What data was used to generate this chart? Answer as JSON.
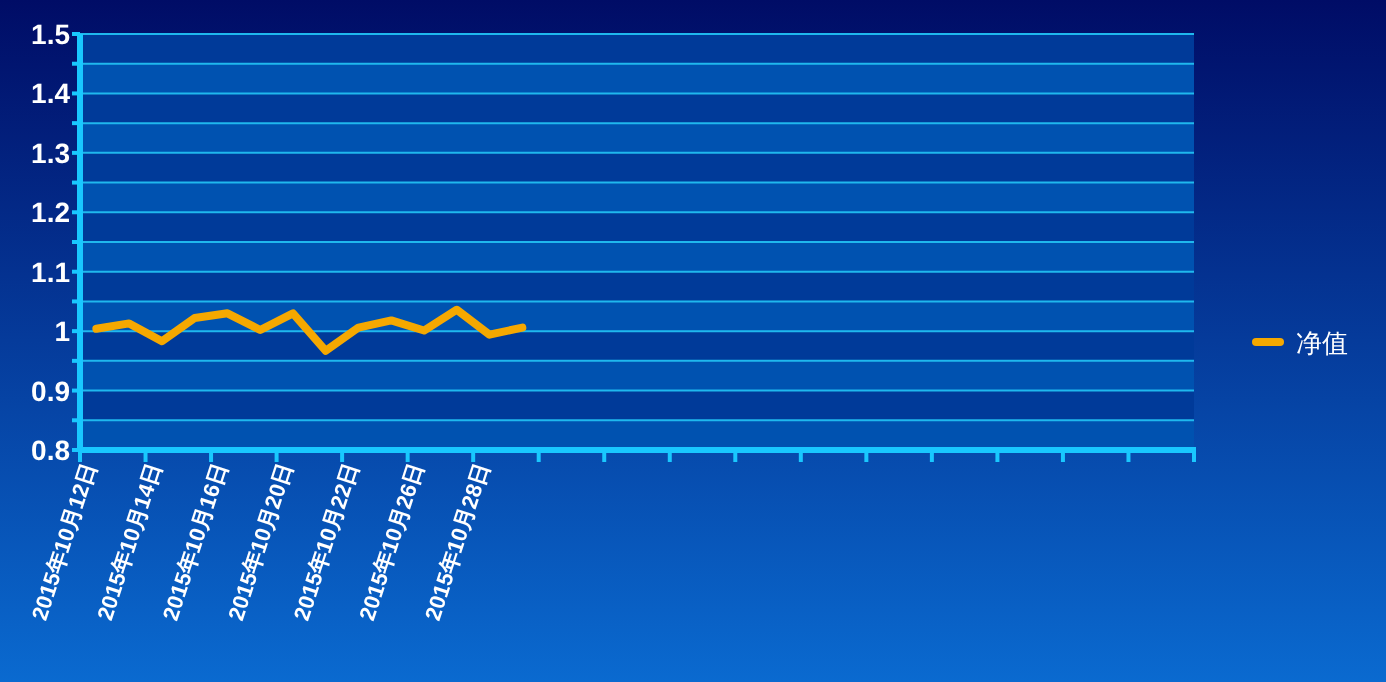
{
  "chart_data": {
    "type": "line",
    "categories": [
      "2015年10月12日",
      null,
      "2015年10月14日",
      null,
      "2015年10月16日",
      null,
      "2015年10月20日",
      null,
      "2015年10月22日",
      null,
      "2015年10月26日",
      null,
      "2015年10月28日",
      null,
      null,
      null,
      null,
      null,
      null,
      null,
      null,
      null,
      null,
      null,
      null,
      null,
      null,
      null,
      null,
      null,
      null,
      null,
      null,
      null
    ],
    "series": [
      {
        "name": "净值",
        "color": "#f5a800",
        "values": [
          1.004,
          1.013,
          0.983,
          1.022,
          1.03,
          1.002,
          1.03,
          0.967,
          1.006,
          1.018,
          1.001,
          1.036,
          0.994,
          1.006,
          null,
          null,
          null,
          null,
          null,
          null,
          null,
          null,
          null,
          null,
          null,
          null,
          null,
          null,
          null,
          null,
          null,
          null,
          null,
          null
        ]
      }
    ],
    "ylim": [
      0.8,
      1.5
    ],
    "yticks": [
      0.8,
      {
        "value": 0.85,
        "label": null
      },
      0.9,
      {
        "value": 0.95,
        "label": null
      },
      1,
      {
        "value": 1.05,
        "label": null
      },
      1.1,
      {
        "value": 1.15,
        "label": null
      },
      1.2,
      {
        "value": 1.25,
        "label": null
      },
      1.3,
      {
        "value": 1.35,
        "label": null
      },
      1.4,
      {
        "value": 1.45,
        "label": null
      },
      1.5
    ],
    "bands": [
      {
        "axis": "y",
        "from": 0.8,
        "to": 0.85,
        "color": "#0052b0"
      },
      {
        "axis": "y",
        "from": 0.85,
        "to": 0.9,
        "color": "#003a99"
      },
      {
        "axis": "y",
        "from": 0.9,
        "to": 0.95,
        "color": "#0052b0"
      },
      {
        "axis": "y",
        "from": 0.95,
        "to": 1,
        "color": "#003a99"
      },
      {
        "axis": "y",
        "from": 1,
        "to": 1.05,
        "color": "#0052b0"
      },
      {
        "axis": "y",
        "from": 1.05,
        "to": 1.1,
        "color": "#003a99"
      },
      {
        "axis": "y",
        "from": 1.1,
        "to": 1.15,
        "color": "#0052b0"
      },
      {
        "axis": "y",
        "from": 1.15,
        "to": 1.2,
        "color": "#003a99"
      },
      {
        "axis": "y",
        "from": 1.2,
        "to": 1.25,
        "color": "#0052b0"
      },
      {
        "axis": "y",
        "from": 1.25,
        "to": 1.3,
        "color": "#003a99"
      },
      {
        "axis": "y",
        "from": 1.3,
        "to": 1.35,
        "color": "#0052b0"
      },
      {
        "axis": "y",
        "from": 1.35,
        "to": 1.4,
        "color": "#003a99"
      },
      {
        "axis": "y",
        "from": 1.4,
        "to": 1.45,
        "color": "#0052b0"
      },
      {
        "axis": "y",
        "from": 1.45,
        "to": 1.5,
        "color": "#003a99"
      }
    ],
    "grid": "y",
    "legend": "right",
    "marker": "none",
    "line_style": "solid"
  }
}
